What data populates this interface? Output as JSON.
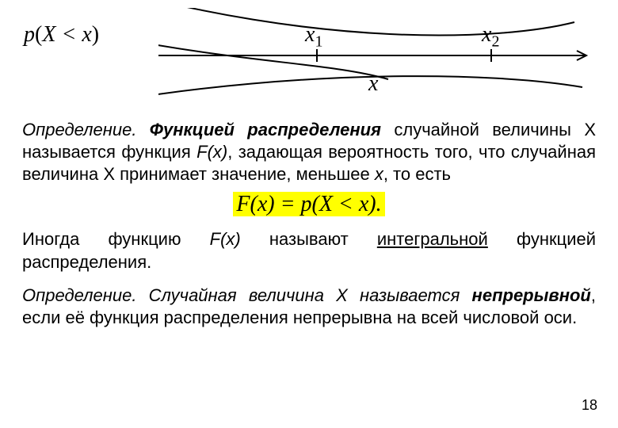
{
  "top_formula_html": "<span class='ital'>p</span><span class='paren'>(</span><span class='ital'>X</span>&nbsp;&lt;&nbsp;<span class='ital'>x</span><span class='paren'>)</span>",
  "diagram": {
    "x1_label": "x<sub>1</sub>",
    "x2_label": "x<sub>2</sub>",
    "x_label": "x",
    "stroke": "#000000",
    "stroke_width": 2
  },
  "para1": {
    "pre": "Определение. ",
    "bold_italic": "Функцией распределения",
    "post": " случайной величины Х называется функция ",
    "fx": "F(x)",
    "post2": ", задающая вероятность того, что случайная величина Х принимает значение, меньшее ",
    "xvar": "х",
    "post3": ", то есть"
  },
  "formula_highlight": "F(x) = p(X < x).",
  "para2": {
    "pre": "Иногда функцию ",
    "fx": "F(x)",
    "mid": " называют ",
    "underline": "интегральной",
    "post": " функцией распределения."
  },
  "para3": {
    "pre": "Определение. Случайная величина Х называется ",
    "bolditalic": "непрерывной",
    "post": ", если её функция распределения непрерывна на всей числовой оси."
  },
  "page_number": "18",
  "colors": {
    "highlight": "#ffff00",
    "text": "#000000",
    "bg": "#ffffff"
  },
  "fontsizes": {
    "body": 22,
    "formula": 28,
    "axis": 28,
    "pagenum": 18
  }
}
